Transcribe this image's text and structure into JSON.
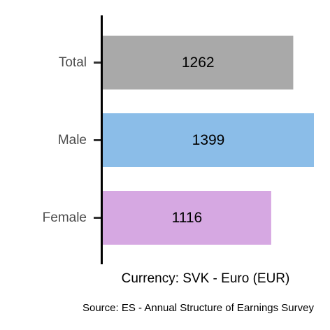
{
  "chart_data": {
    "type": "bar",
    "orientation": "horizontal",
    "categories": [
      "Total",
      "Male",
      "Female"
    ],
    "values": [
      1262,
      1399,
      1116
    ],
    "colors": [
      "#a9a9a9",
      "#8bbde8",
      "#d6a8e2"
    ],
    "xlabel": "Currency: SVK - Euro (EUR)",
    "source": "Source:  ES - Annual Structure of Earnings Survey",
    "xlim": [
      0,
      1399
    ],
    "grid": false,
    "legend": "none"
  }
}
